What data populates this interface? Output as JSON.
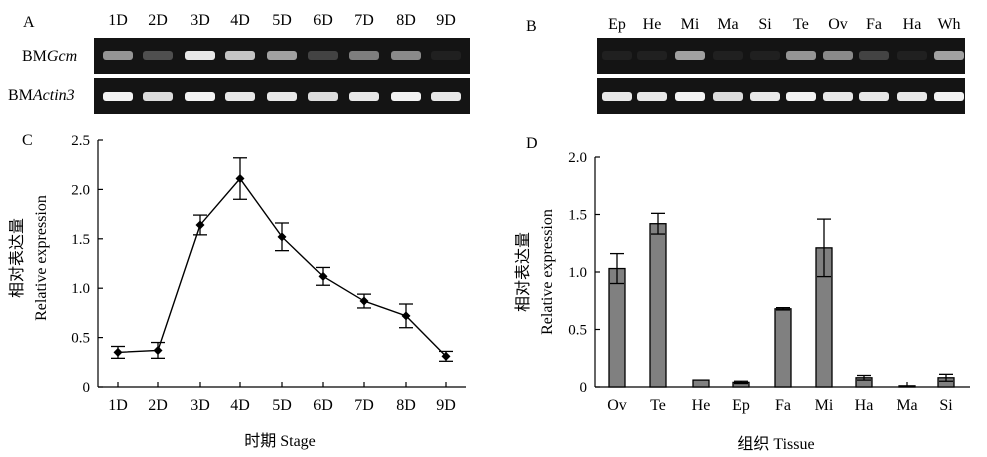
{
  "panels": {
    "A": {
      "letter": "A",
      "lanes": [
        "1D",
        "2D",
        "3D",
        "4D",
        "5D",
        "6D",
        "7D",
        "8D",
        "9D"
      ],
      "row_labels": [
        {
          "prefix": "BM",
          "italic": "Gcm"
        },
        {
          "prefix": "BM",
          "italic": "Actin3"
        }
      ],
      "gcm_band_intensity": [
        0.55,
        0.25,
        0.9,
        0.75,
        0.6,
        0.2,
        0.45,
        0.5,
        0.05
      ],
      "actin_band_intensity": [
        0.95,
        0.85,
        0.95,
        0.9,
        0.9,
        0.85,
        0.9,
        0.95,
        0.9
      ]
    },
    "B": {
      "letter": "B",
      "lanes": [
        "Ep",
        "He",
        "Mi",
        "Ma",
        "Si",
        "Te",
        "Ov",
        "Fa",
        "Ha",
        "Wh"
      ],
      "gcm_band_intensity": [
        0.05,
        0.05,
        0.6,
        0.05,
        0.05,
        0.55,
        0.5,
        0.2,
        0.05,
        0.6
      ],
      "actin_band_intensity": [
        0.9,
        0.9,
        0.95,
        0.85,
        0.9,
        0.95,
        0.9,
        0.9,
        0.9,
        0.95
      ]
    }
  },
  "chart_data": [
    {
      "panel": "C",
      "type": "line",
      "categories": [
        "1D",
        "2D",
        "3D",
        "4D",
        "5D",
        "6D",
        "7D",
        "8D",
        "9D"
      ],
      "values": [
        0.35,
        0.37,
        1.64,
        2.11,
        1.52,
        1.12,
        0.87,
        0.72,
        0.31
      ],
      "errors": [
        0.06,
        0.08,
        0.1,
        0.21,
        0.14,
        0.09,
        0.07,
        0.12,
        0.05
      ],
      "yticks": [
        "0",
        "0.5",
        "1.0",
        "1.5",
        "2.0",
        "2.5"
      ],
      "ylim": [
        0,
        2.5
      ],
      "ylabel_cn": "相对表达量",
      "ylabel_en": "Relative expression",
      "xlabel": "时期 Stage",
      "color": "#000000"
    },
    {
      "panel": "D",
      "type": "bar",
      "categories": [
        "Ov",
        "Te",
        "He",
        "Ep",
        "Fa",
        "Mi",
        "Ha",
        "Ma",
        "Si"
      ],
      "values": [
        1.03,
        1.42,
        0.06,
        0.04,
        0.68,
        1.21,
        0.08,
        0.01,
        0.08
      ],
      "errors": [
        0.13,
        0.09,
        0.0,
        0.01,
        0.01,
        0.25,
        0.02,
        0.0,
        0.03
      ],
      "yticks": [
        "0",
        "0.5",
        "1.0",
        "1.5",
        "2.0"
      ],
      "ylim": [
        0,
        2.0
      ],
      "ylabel_cn": "相对表达量",
      "ylabel_en": "Relative expression",
      "xlabel": "组织 Tissue",
      "color": "#808080"
    }
  ]
}
